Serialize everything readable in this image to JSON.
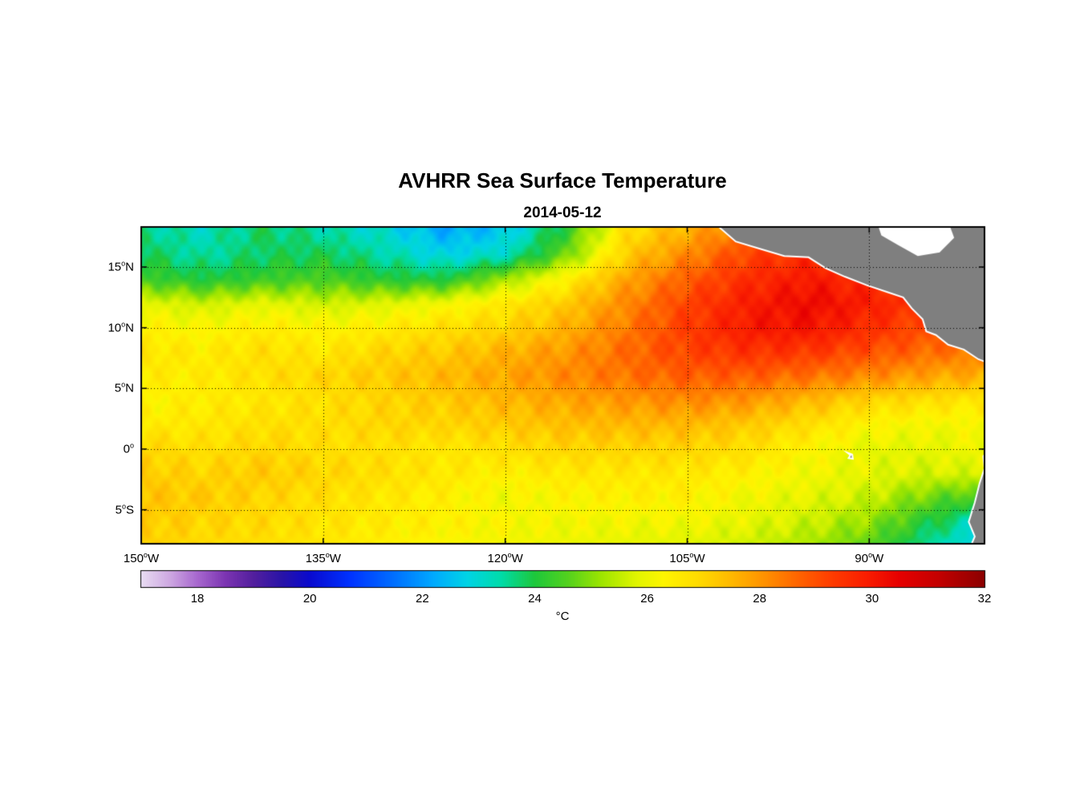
{
  "title": "AVHRR Sea Surface Temperature",
  "subtitle": "2014-05-12",
  "axes": {
    "x_ticks": [
      {
        "label": "150°W",
        "lon": -150
      },
      {
        "label": "135°W",
        "lon": -135
      },
      {
        "label": "120°W",
        "lon": -120
      },
      {
        "label": "105°W",
        "lon": -105
      },
      {
        "label": "90°W",
        "lon": -90
      }
    ],
    "y_ticks": [
      {
        "label": "15°N",
        "lat": 15
      },
      {
        "label": "10°N",
        "lat": 10
      },
      {
        "label": "5°N",
        "lat": 5
      },
      {
        "label": "0°",
        "lat": 0
      },
      {
        "label": "5°S",
        "lat": -5
      }
    ],
    "lon_range": [
      -150,
      -80.5
    ],
    "lat_range": [
      18.3,
      -7.8
    ],
    "grid": "dotted"
  },
  "colorbar": {
    "units": "°C",
    "min": 17,
    "max": 32,
    "tick_values": [
      18,
      20,
      22,
      24,
      26,
      28,
      30,
      32
    ],
    "stops": [
      [
        17,
        "#E9DDF3"
      ],
      [
        17.5,
        "#CFA9E2"
      ],
      [
        18,
        "#A868CF"
      ],
      [
        18.5,
        "#7C35B2"
      ],
      [
        19,
        "#531F9E"
      ],
      [
        19.5,
        "#2A14A8"
      ],
      [
        20,
        "#0A0ACF"
      ],
      [
        20.7,
        "#0032FF"
      ],
      [
        21.5,
        "#0070FF"
      ],
      [
        22.2,
        "#00AAFF"
      ],
      [
        22.8,
        "#00D4E6"
      ],
      [
        23.4,
        "#00DCAA"
      ],
      [
        24,
        "#1EC83C"
      ],
      [
        24.6,
        "#55D21E"
      ],
      [
        25.2,
        "#A0E600"
      ],
      [
        25.8,
        "#E1F500"
      ],
      [
        26.3,
        "#FFF500"
      ],
      [
        26.9,
        "#FFDC00"
      ],
      [
        27.5,
        "#FFB900"
      ],
      [
        28.1,
        "#FF9100"
      ],
      [
        28.7,
        "#FF6400"
      ],
      [
        29.3,
        "#FF3C00"
      ],
      [
        29.9,
        "#FA1E00"
      ],
      [
        30.5,
        "#E60000"
      ],
      [
        31.2,
        "#C30000"
      ],
      [
        32,
        "#8C0000"
      ]
    ]
  },
  "chart_data": {
    "type": "heatmap",
    "title": "AVHRR Sea Surface Temperature",
    "date": "2014-05-12",
    "units": "°C",
    "value_range": [
      17,
      32
    ],
    "lons": [
      -150,
      -145,
      -140,
      -135,
      -130,
      -125,
      -120,
      -115,
      -110,
      -105,
      -100,
      -95,
      -90,
      -85,
      -80
    ],
    "lats": [
      18,
      16,
      14,
      12,
      10,
      8,
      6,
      4,
      2,
      0,
      -2,
      -4,
      -6,
      -8
    ],
    "sst": [
      [
        23.6,
        23.2,
        23.8,
        23.4,
        23.0,
        22.2,
        22.6,
        24.2,
        26.8,
        27.6,
        28.6,
        29.0,
        28.8,
        28.4,
        28.2
      ],
      [
        23.9,
        23.4,
        23.8,
        23.9,
        23.4,
        22.8,
        23.2,
        24.8,
        27.2,
        28.2,
        29.2,
        29.6,
        29.2,
        28.8,
        28.4
      ],
      [
        24.4,
        24.0,
        24.3,
        24.5,
        24.1,
        24.0,
        25.2,
        26.4,
        27.8,
        28.8,
        29.6,
        30.0,
        29.6,
        29.0,
        28.6
      ],
      [
        25.9,
        25.6,
        25.9,
        25.6,
        25.8,
        26.1,
        26.6,
        27.2,
        28.2,
        29.2,
        29.9,
        30.3,
        29.9,
        29.3,
        28.8
      ],
      [
        26.4,
        26.2,
        26.5,
        26.3,
        26.5,
        26.8,
        27.0,
        27.6,
        28.4,
        29.3,
        30.0,
        30.1,
        29.6,
        29.0,
        28.6
      ],
      [
        26.7,
        26.5,
        26.8,
        26.6,
        27.0,
        27.2,
        27.6,
        28.0,
        28.6,
        29.2,
        29.5,
        29.4,
        29.0,
        28.6,
        28.4
      ],
      [
        26.5,
        26.5,
        26.8,
        27.0,
        27.2,
        27.5,
        27.8,
        28.2,
        28.5,
        28.8,
        28.8,
        28.5,
        28.2,
        27.8,
        27.6
      ],
      [
        26.3,
        26.5,
        26.6,
        26.8,
        27.0,
        27.2,
        27.5,
        27.8,
        28.0,
        28.2,
        28.0,
        27.5,
        27.0,
        26.8,
        26.6
      ],
      [
        26.5,
        26.6,
        26.8,
        26.8,
        27.0,
        27.0,
        27.2,
        27.4,
        27.5,
        27.5,
        27.2,
        26.8,
        26.3,
        26.1,
        26.2
      ],
      [
        27.0,
        26.8,
        27.0,
        26.8,
        26.8,
        26.6,
        26.8,
        27.0,
        27.0,
        27.0,
        26.8,
        26.3,
        25.9,
        25.9,
        26.1
      ],
      [
        27.2,
        27.0,
        27.2,
        27.0,
        26.8,
        26.6,
        26.4,
        26.6,
        26.6,
        26.6,
        26.4,
        26.1,
        25.9,
        25.7,
        25.8
      ],
      [
        27.3,
        27.2,
        27.0,
        26.8,
        26.6,
        26.4,
        26.1,
        26.3,
        26.4,
        26.4,
        26.1,
        25.9,
        25.6,
        24.8,
        24.2
      ],
      [
        27.2,
        27.0,
        26.9,
        26.7,
        26.5,
        26.4,
        26.2,
        26.1,
        26.1,
        26.1,
        25.9,
        25.6,
        25.1,
        24.0,
        23.0
      ],
      [
        27.1,
        26.9,
        26.8,
        26.6,
        26.4,
        26.2,
        26.1,
        26.0,
        25.9,
        25.8,
        25.6,
        25.3,
        24.6,
        23.4,
        22.6
      ]
    ],
    "land_color": "#7F7F7F",
    "coastline_color": "#FFFFFF",
    "land_polygons": [
      {
        "name": "central-america",
        "points": [
          [
            -102.5,
            18.4
          ],
          [
            -101.0,
            17.1
          ],
          [
            -99.0,
            16.5
          ],
          [
            -97.0,
            15.9
          ],
          [
            -95.0,
            15.8
          ],
          [
            -93.6,
            14.9
          ],
          [
            -92.0,
            14.2
          ],
          [
            -90.2,
            13.5
          ],
          [
            -88.4,
            12.9
          ],
          [
            -87.2,
            12.5
          ],
          [
            -86.5,
            11.6
          ],
          [
            -85.6,
            10.7
          ],
          [
            -85.3,
            9.7
          ],
          [
            -84.5,
            9.4
          ],
          [
            -83.5,
            8.6
          ],
          [
            -82.2,
            8.2
          ],
          [
            -81.0,
            7.4
          ],
          [
            -80.2,
            7.1
          ],
          [
            -79.6,
            6.6
          ],
          [
            -79.4,
            5.9
          ],
          [
            -79.0,
            5.6
          ],
          [
            -79.0,
            19.0
          ]
        ]
      },
      {
        "name": "south-america",
        "points": [
          [
            -79.0,
            0.4
          ],
          [
            -80.1,
            0.1
          ],
          [
            -80.6,
            -0.6
          ],
          [
            -80.5,
            -1.6
          ],
          [
            -80.9,
            -2.8
          ],
          [
            -81.3,
            -4.4
          ],
          [
            -81.8,
            -6.0
          ],
          [
            -81.3,
            -7.2
          ],
          [
            -81.9,
            -8.6
          ],
          [
            -79.0,
            -8.6
          ]
        ]
      },
      {
        "name": "galapagos-island",
        "points": [
          [
            -91.8,
            -0.3
          ],
          [
            -91.4,
            -0.45
          ],
          [
            -91.35,
            -0.8
          ],
          [
            -91.7,
            -0.75
          ],
          [
            -91.55,
            -0.5
          ]
        ]
      }
    ],
    "masked_sea_polygons": [
      {
        "name": "caribbean-mask",
        "points": [
          [
            -89.3,
            18.5
          ],
          [
            -83.4,
            18.5
          ],
          [
            -83.0,
            17.4
          ],
          [
            -84.2,
            16.2
          ],
          [
            -86.0,
            15.9
          ],
          [
            -87.6,
            16.8
          ],
          [
            -89.0,
            17.6
          ]
        ]
      }
    ]
  }
}
